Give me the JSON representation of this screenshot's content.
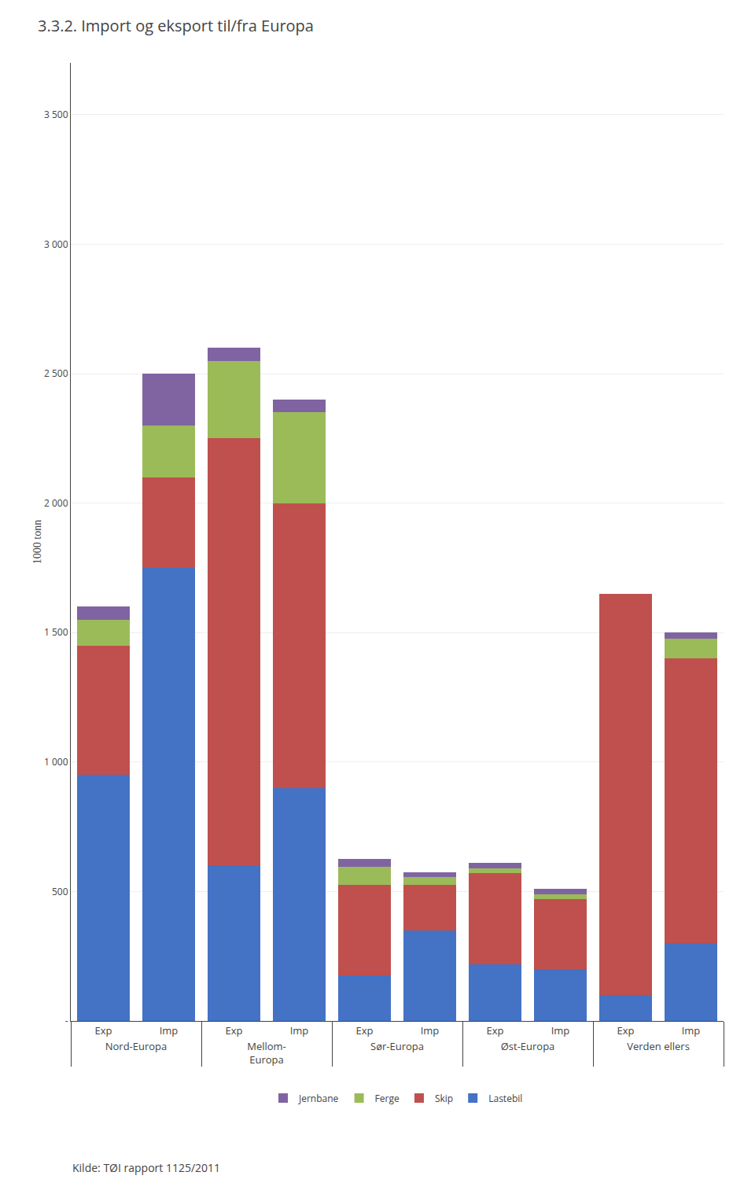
{
  "chart_data": {
    "type": "bar",
    "stacked": true,
    "title": "3.3.2. Import og eksport til/fra Europa",
    "ylabel": "1000 tonn",
    "categories": [
      "Exp",
      "Imp",
      "Exp",
      "Imp",
      "Exp",
      "Imp",
      "Exp",
      "Imp",
      "Exp",
      "Imp"
    ],
    "groups": [
      "Nord-Europa",
      "Mellom-\nEuropa",
      "Sør-Europa",
      "Øst-Europa",
      "Verden ellers"
    ],
    "series": [
      {
        "name": "Lastebil",
        "color": "#4472C4",
        "values": [
          950,
          1750,
          600,
          900,
          175,
          350,
          220,
          200,
          100,
          300
        ]
      },
      {
        "name": "Skip",
        "color": "#C0504D",
        "values": [
          500,
          350,
          1650,
          1100,
          350,
          175,
          350,
          270,
          1550,
          1100
        ]
      },
      {
        "name": "Ferge",
        "color": "#9BBB59",
        "values": [
          100,
          200,
          300,
          350,
          70,
          30,
          20,
          20,
          0,
          75
        ]
      },
      {
        "name": "Jernbane",
        "color": "#8064A2",
        "values": [
          50,
          200,
          50,
          50,
          30,
          20,
          20,
          20,
          0,
          25
        ]
      }
    ],
    "ylim": [
      0,
      3700
    ],
    "yticks": [
      {
        "value": 0,
        "label": "-"
      },
      500,
      {
        "value": 1000,
        "label": "1 000"
      },
      {
        "value": 1500,
        "label": "1 500"
      },
      {
        "value": 2000,
        "label": "2 000"
      },
      {
        "value": 2500,
        "label": "2 500"
      },
      {
        "value": 3000,
        "label": "3 000"
      },
      {
        "value": 3500,
        "label": "3 500"
      }
    ],
    "grid": true,
    "legend": "bottom",
    "annotations": [
      "Kilde: TØI rapport 1125/2011"
    ]
  }
}
